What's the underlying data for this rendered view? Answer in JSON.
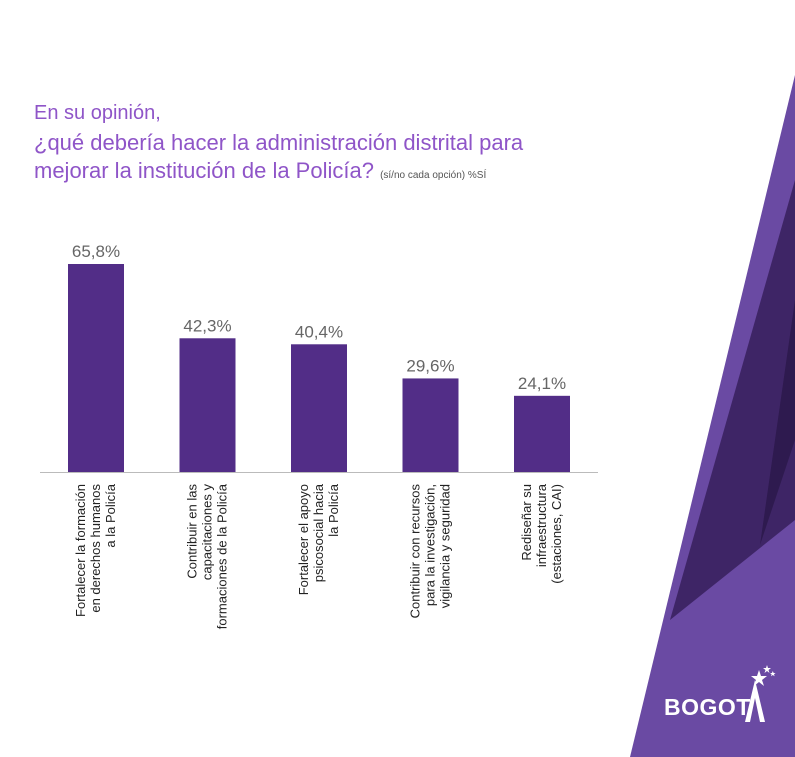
{
  "title": {
    "line1": "En su opinión,",
    "line2": "¿qué debería hacer la administración distrital para",
    "line3": "mejorar la institución de la Policía?",
    "note": "(sí/no cada opción) %SÍ"
  },
  "colors": {
    "bar": "#522d87",
    "title": "#8f55c8",
    "brand_light": "#6a4aa3",
    "brand_mid": "#3e2566",
    "brand_dark": "#2e1a4f"
  },
  "chart_data": {
    "type": "bar",
    "categories": [
      [
        "Fortalecer la formación",
        "en derechos humanos",
        "a la Policía"
      ],
      [
        "Contribuir en las",
        "capacitaciones y",
        "formaciones de la Policía"
      ],
      [
        "Fortalecer el apoyo",
        "psicosocial hacia",
        "la Policía"
      ],
      [
        "Contribuir con recursos",
        "para la investigación,",
        "vigilancia y seguridad"
      ],
      [
        "Rediseñar su",
        "infraestructura",
        "(estaciones, CAI)"
      ]
    ],
    "values": [
      65.8,
      42.3,
      40.4,
      29.6,
      24.1
    ],
    "value_labels": [
      "65,8%",
      "42,3%",
      "40,4%",
      "29,6%",
      "24,1%"
    ],
    "ylim": [
      0,
      65.8
    ],
    "grid": false,
    "legend": "none"
  },
  "brand": {
    "logo_text": "BOGOT",
    "logo_icon": "bogota-star-a-icon"
  }
}
